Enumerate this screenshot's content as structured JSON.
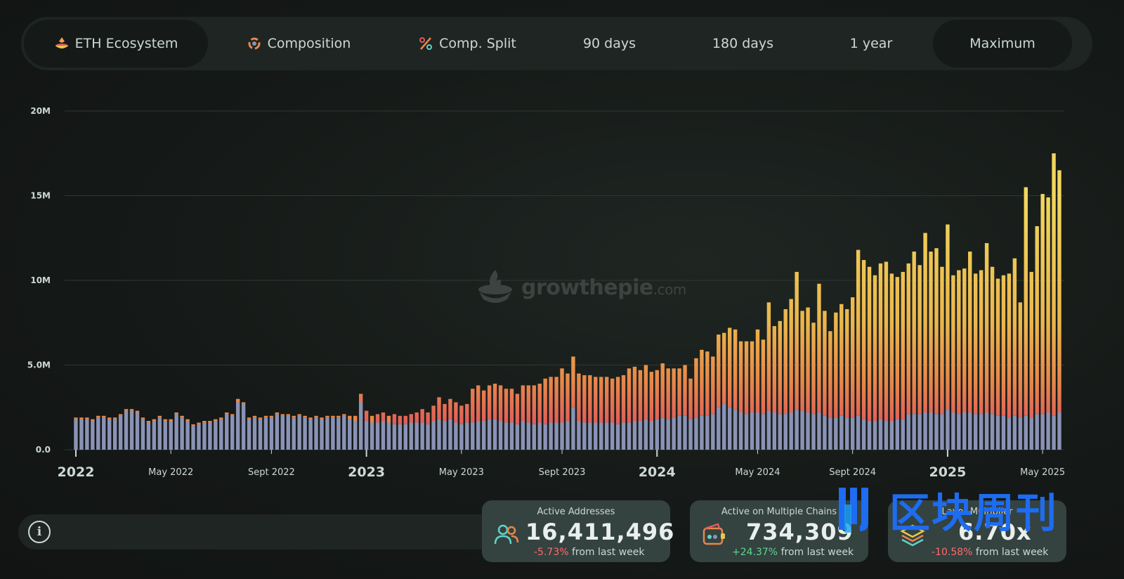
{
  "tabs": [
    {
      "label": "ETH Ecosystem",
      "icon": "eth-ecosystem-icon",
      "active": true
    },
    {
      "label": "Composition",
      "icon": "composition-icon",
      "active": false
    },
    {
      "label": "Comp. Split",
      "icon": "percent-icon",
      "active": false
    },
    {
      "label": "90 days",
      "active": false
    },
    {
      "label": "180 days",
      "active": false
    },
    {
      "label": "1 year",
      "active": false
    },
    {
      "label": "Maximum",
      "active": true
    }
  ],
  "watermark": {
    "text": "growthepie",
    "suffix": ".com"
  },
  "cards": [
    {
      "label": "Active Addresses",
      "value": "16,411,496",
      "change": "-5.73%",
      "change_suffix": " from last week",
      "icon": "users-icon"
    },
    {
      "label": "Active on Multiple Chains",
      "value": "734,309",
      "change": "+24.37%",
      "change_suffix": " from last week",
      "icon": "wallet-chains-icon"
    },
    {
      "label": "Layer Multiplier",
      "value": "6.70x",
      "change": "-10.58%",
      "change_suffix": " from last week",
      "icon": "layers-icon"
    }
  ],
  "overlay_watermark": {
    "text": "区块周刊"
  },
  "info_icon": "info-icon",
  "colors": {
    "base_layer": "#8a93b6",
    "orange_layer": "#e7874a",
    "red_layer": "#e05b5b",
    "yellow_layer": "#e8c64f",
    "accent_blue": "#1e6cf0"
  },
  "chart_data": {
    "type": "bar",
    "stacked": true,
    "y_ticks": [
      "0.0",
      "5.0M",
      "10M",
      "15M",
      "20M"
    ],
    "ylim": [
      0,
      20000000
    ],
    "x_tick_labels": [
      {
        "label": "2022",
        "week": 0,
        "major": true
      },
      {
        "label": "May 2022",
        "week": 17,
        "major": false
      },
      {
        "label": "Sept 2022",
        "week": 35,
        "major": false
      },
      {
        "label": "2023",
        "week": 52,
        "major": true
      },
      {
        "label": "May 2023",
        "week": 69,
        "major": false
      },
      {
        "label": "Sept 2023",
        "week": 87,
        "major": false
      },
      {
        "label": "2024",
        "week": 104,
        "major": true
      },
      {
        "label": "May 2024",
        "week": 122,
        "major": false
      },
      {
        "label": "Sept 2024",
        "week": 139,
        "major": false
      },
      {
        "label": "2025",
        "week": 156,
        "major": true
      },
      {
        "label": "May 2025",
        "week": 173,
        "major": false
      }
    ],
    "x_unit": "week",
    "totals_millions": [
      1.9,
      1.9,
      1.9,
      1.8,
      2.0,
      2.0,
      1.9,
      1.9,
      2.1,
      2.4,
      2.4,
      2.3,
      1.9,
      1.7,
      1.8,
      2.0,
      1.8,
      1.8,
      2.2,
      2.0,
      1.8,
      1.5,
      1.6,
      1.7,
      1.7,
      1.8,
      1.9,
      2.2,
      2.1,
      3.0,
      2.8,
      1.9,
      2.0,
      1.9,
      2.0,
      2.0,
      2.2,
      2.1,
      2.1,
      2.0,
      2.1,
      2.0,
      1.9,
      2.0,
      1.9,
      2.0,
      2.0,
      2.0,
      2.1,
      2.0,
      2.0,
      3.3,
      2.3,
      2.0,
      2.1,
      2.2,
      2.0,
      2.1,
      2.0,
      2.0,
      2.1,
      2.2,
      2.4,
      2.2,
      2.6,
      3.1,
      2.7,
      3.0,
      2.8,
      2.6,
      2.7,
      3.6,
      3.8,
      3.5,
      3.8,
      3.9,
      3.8,
      3.6,
      3.6,
      3.3,
      3.8,
      3.8,
      3.8,
      3.9,
      4.2,
      4.3,
      4.3,
      4.8,
      4.5,
      5.5,
      4.5,
      4.4,
      4.4,
      4.3,
      4.3,
      4.3,
      4.2,
      4.3,
      4.4,
      4.8,
      4.9,
      4.7,
      5.0,
      4.6,
      4.7,
      5.1,
      4.8,
      4.8,
      4.8,
      5.0,
      4.2,
      5.4,
      5.9,
      5.8,
      5.5,
      6.8,
      6.9,
      7.2,
      7.1,
      6.4,
      6.4,
      6.4,
      7.1,
      6.5,
      8.7,
      7.3,
      7.6,
      8.3,
      8.9,
      10.5,
      8.2,
      8.4,
      7.5,
      9.8,
      8.2,
      7.0,
      8.1,
      8.6,
      8.3,
      9.0,
      11.8,
      11.2,
      10.8,
      10.3,
      11.0,
      11.1,
      10.4,
      10.2,
      10.5,
      11.0,
      11.7,
      10.9,
      12.8,
      11.7,
      11.9,
      10.8,
      13.3,
      10.3,
      10.6,
      10.7,
      11.7,
      10.4,
      10.6,
      12.2,
      10.8,
      10.1,
      10.3,
      10.4,
      11.3,
      8.7,
      15.5,
      10.5,
      13.2,
      15.1,
      14.9,
      17.5,
      16.5
    ],
    "base_millions": [
      1.8,
      1.8,
      1.8,
      1.7,
      1.9,
      1.9,
      1.8,
      1.8,
      2.0,
      2.3,
      2.3,
      2.2,
      1.8,
      1.6,
      1.7,
      1.9,
      1.7,
      1.7,
      2.1,
      1.9,
      1.7,
      1.4,
      1.5,
      1.6,
      1.6,
      1.7,
      1.8,
      2.1,
      2.0,
      2.8,
      2.7,
      1.8,
      1.9,
      1.8,
      1.9,
      1.9,
      2.1,
      2.0,
      2.0,
      1.9,
      2.0,
      1.9,
      1.8,
      1.9,
      1.8,
      1.9,
      1.9,
      1.9,
      2.0,
      1.8,
      1.7,
      2.8,
      1.7,
      1.6,
      1.6,
      1.7,
      1.6,
      1.5,
      1.5,
      1.5,
      1.6,
      1.6,
      1.6,
      1.5,
      1.7,
      1.8,
      1.7,
      1.8,
      1.6,
      1.5,
      1.6,
      1.6,
      1.7,
      1.7,
      1.8,
      1.8,
      1.7,
      1.6,
      1.6,
      1.5,
      1.7,
      1.6,
      1.5,
      1.6,
      1.5,
      1.6,
      1.6,
      1.6,
      1.7,
      2.5,
      1.7,
      1.6,
      1.6,
      1.6,
      1.6,
      1.6,
      1.6,
      1.5,
      1.6,
      1.6,
      1.7,
      1.7,
      1.8,
      1.7,
      1.8,
      1.9,
      1.8,
      1.9,
      2.0,
      2.0,
      1.8,
      1.9,
      2.0,
      2.0,
      2.1,
      2.5,
      2.7,
      2.5,
      2.4,
      2.2,
      2.1,
      2.2,
      2.2,
      2.1,
      2.3,
      2.2,
      2.1,
      2.1,
      2.2,
      2.4,
      2.3,
      2.2,
      2.1,
      2.2,
      2.0,
      1.9,
      1.9,
      2.0,
      1.9,
      1.9,
      2.0,
      1.8,
      1.7,
      1.7,
      1.8,
      1.7,
      1.7,
      1.8,
      1.8,
      2.1,
      2.1,
      2.1,
      2.2,
      2.2,
      2.1,
      2.1,
      2.4,
      2.2,
      2.1,
      2.2,
      2.2,
      2.1,
      2.1,
      2.2,
      2.1,
      2.0,
      2.0,
      1.9,
      2.0,
      1.9,
      2.0,
      1.9,
      2.1,
      2.1,
      2.2,
      2.0,
      2.2
    ]
  }
}
